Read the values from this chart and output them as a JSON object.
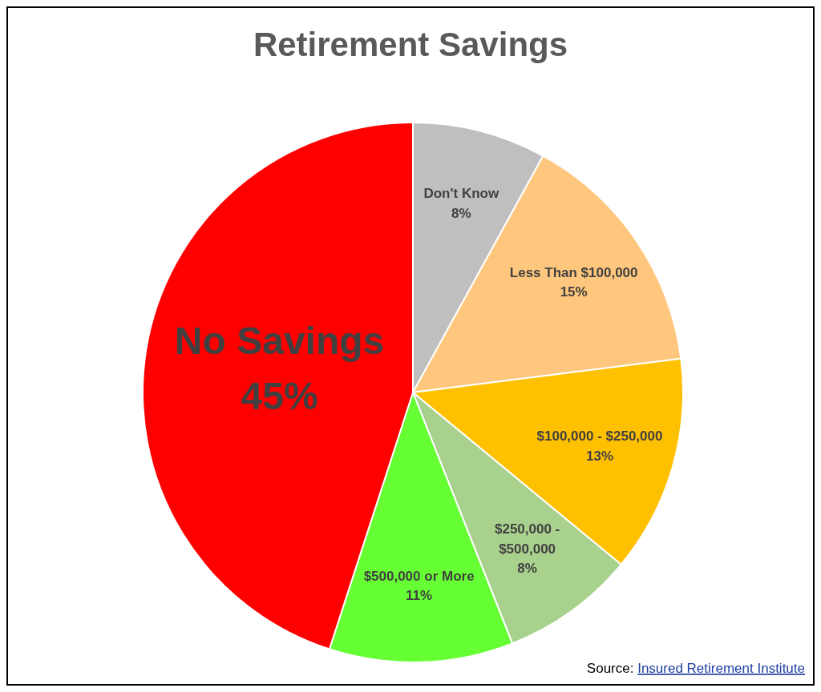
{
  "chart_data": {
    "type": "pie",
    "title": "Retirement Savings",
    "categories": [
      "Don't Know",
      "Less Than $100,000",
      "$100,000 - $250,000",
      "$250,000 - $500,000",
      "$500,000 or More",
      "No Savings"
    ],
    "values": [
      8,
      15,
      13,
      8,
      11,
      45
    ],
    "value_labels": [
      "8%",
      "15%",
      "13%",
      "8%",
      "11%",
      "45%"
    ],
    "colors": [
      "#bfbfbf",
      "#ffc77d",
      "#ffc000",
      "#a9d18e",
      "#66ff33",
      "#ff0000"
    ],
    "annotations": [
      "Source: Insured Retirement Institute"
    ]
  }
}
